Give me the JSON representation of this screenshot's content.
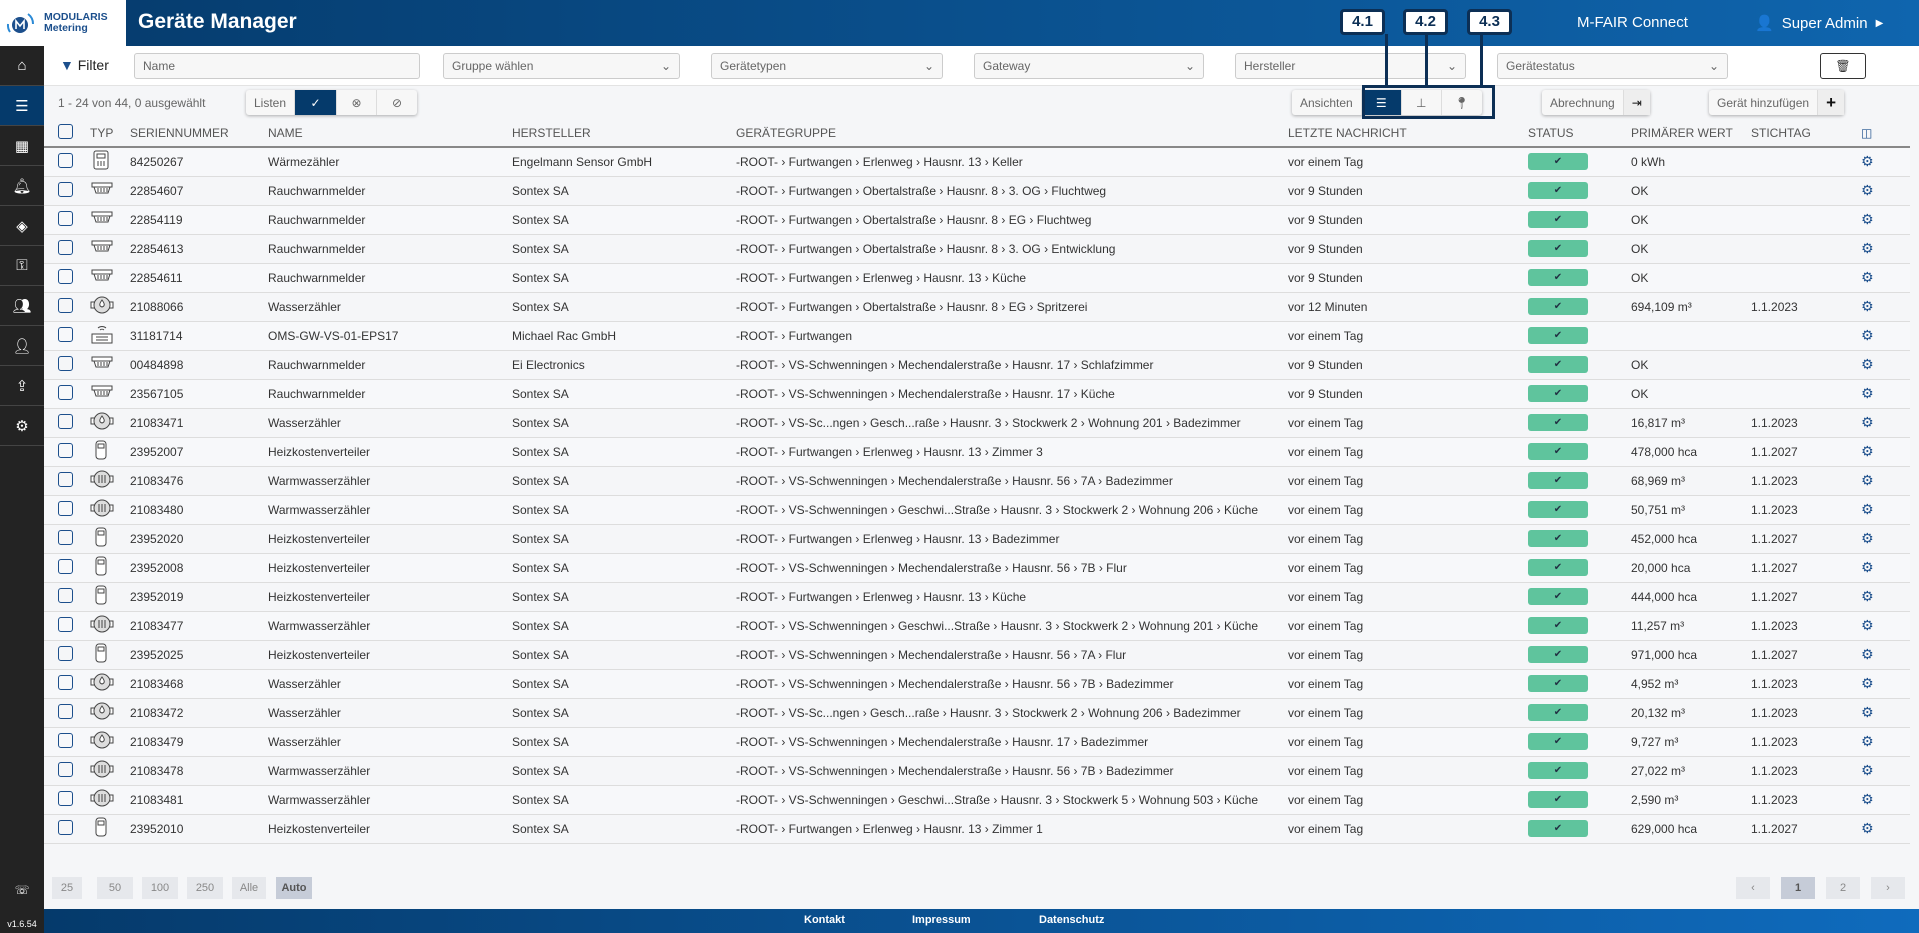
{
  "header": {
    "logo_line1": "MODULARIS",
    "logo_line2": "Metering",
    "title": "Geräte Manager",
    "app": "M-FAIR Connect",
    "user": "Super Admin"
  },
  "sidebar": {
    "items": [
      "home",
      "list",
      "buildings",
      "bell",
      "layers",
      "key",
      "users",
      "user-tag",
      "file-upload",
      "gear"
    ],
    "active": "list",
    "version": "v1.6.54"
  },
  "filter": {
    "label": "Filter",
    "name_placeholder": "Name",
    "group": "Gruppe wählen",
    "types": "Gerätetypen",
    "gateway": "Gateway",
    "manufacturer": "Hersteller",
    "status": "Gerätestatus"
  },
  "toolbar": {
    "count": "1 - 24 von 44, 0 ausgewählt",
    "lists": "Listen",
    "views": "Ansichten",
    "billing": "Abrechnung",
    "add_device": "Gerät hinzufügen",
    "annotations": [
      "4.1",
      "4.2",
      "4.3"
    ]
  },
  "columns": [
    "TYP",
    "SERIENNUMMER",
    "NAME",
    "HERSTELLER",
    "GERÄTEGRUPPE",
    "LETZTE NACHRICHT",
    "STATUS",
    "PRIMÄRER WERT",
    "STICHTAG"
  ],
  "rows": [
    {
      "type": "heat",
      "serial": "84250267",
      "name": "Wärmezähler",
      "mfr": "Engelmann Sensor GmbH",
      "group": "-ROOT- › Furtwangen › Erlenweg › Hausnr. 13 › Keller",
      "last": "vor einem Tag",
      "value": "0 kWh",
      "date": ""
    },
    {
      "type": "smoke",
      "serial": "22854607",
      "name": "Rauchwarnmelder",
      "mfr": "Sontex SA",
      "group": "-ROOT- › Furtwangen › Obertalstraße › Hausnr. 8 › 3. OG › Fluchtweg",
      "last": "vor 9 Stunden",
      "value": "OK",
      "date": ""
    },
    {
      "type": "smoke",
      "serial": "22854119",
      "name": "Rauchwarnmelder",
      "mfr": "Sontex SA",
      "group": "-ROOT- › Furtwangen › Obertalstraße › Hausnr. 8 › EG › Fluchtweg",
      "last": "vor 9 Stunden",
      "value": "OK",
      "date": ""
    },
    {
      "type": "smoke",
      "serial": "22854613",
      "name": "Rauchwarnmelder",
      "mfr": "Sontex SA",
      "group": "-ROOT- › Furtwangen › Obertalstraße › Hausnr. 8 › 3. OG › Entwicklung",
      "last": "vor 9 Stunden",
      "value": "OK",
      "date": ""
    },
    {
      "type": "smoke",
      "serial": "22854611",
      "name": "Rauchwarnmelder",
      "mfr": "Sontex SA",
      "group": "-ROOT- › Furtwangen › Erlenweg › Hausnr. 13 › Küche",
      "last": "vor 9 Stunden",
      "value": "OK",
      "date": ""
    },
    {
      "type": "water",
      "serial": "21088066",
      "name": "Wasserzähler",
      "mfr": "Sontex SA",
      "group": "-ROOT- › Furtwangen › Obertalstraße › Hausnr. 8 › EG › Spritzerei",
      "last": "vor 12 Minuten",
      "value": "694,109 m³",
      "date": "1.1.2023"
    },
    {
      "type": "gateway",
      "serial": "31181714",
      "name": "OMS-GW-VS-01-EPS17",
      "mfr": "Michael Rac GmbH",
      "group": "-ROOT- › Furtwangen",
      "last": "vor einem Tag",
      "value": "",
      "date": ""
    },
    {
      "type": "smoke",
      "serial": "00484898",
      "name": "Rauchwarnmelder",
      "mfr": "Ei Electronics",
      "group": "-ROOT- › VS-Schwenningen › Mechendalerstraße › Hausnr. 17 › Schlafzimmer",
      "last": "vor 9 Stunden",
      "value": "OK",
      "date": ""
    },
    {
      "type": "smoke",
      "serial": "23567105",
      "name": "Rauchwarnmelder",
      "mfr": "Sontex SA",
      "group": "-ROOT- › VS-Schwenningen › Mechendalerstraße › Hausnr. 17 › Küche",
      "last": "vor 9 Stunden",
      "value": "OK",
      "date": ""
    },
    {
      "type": "water",
      "serial": "21083471",
      "name": "Wasserzähler",
      "mfr": "Sontex SA",
      "group": "-ROOT- › VS-Sc...ngen › Gesch...raße › Hausnr. 3 › Stockwerk 2 › Wohnung 201 › Badezimmer",
      "last": "vor einem Tag",
      "value": "16,817 m³",
      "date": "1.1.2023"
    },
    {
      "type": "hca",
      "serial": "23952007",
      "name": "Heizkostenverteiler",
      "mfr": "Sontex SA",
      "group": "-ROOT- › Furtwangen › Erlenweg › Hausnr. 13 › Zimmer 3",
      "last": "vor einem Tag",
      "value": "478,000 hca",
      "date": "1.1.2027"
    },
    {
      "type": "warm",
      "serial": "21083476",
      "name": "Warmwasserzähler",
      "mfr": "Sontex SA",
      "group": "-ROOT- › VS-Schwenningen › Mechendalerstraße › Hausnr. 56 › 7A › Badezimmer",
      "last": "vor einem Tag",
      "value": "68,969 m³",
      "date": "1.1.2023"
    },
    {
      "type": "warm",
      "serial": "21083480",
      "name": "Warmwasserzähler",
      "mfr": "Sontex SA",
      "group": "-ROOT- › VS-Schwenningen › Geschwi...Straße › Hausnr. 3 › Stockwerk 2 › Wohnung 206 › Küche",
      "last": "vor einem Tag",
      "value": "50,751 m³",
      "date": "1.1.2023"
    },
    {
      "type": "hca",
      "serial": "23952020",
      "name": "Heizkostenverteiler",
      "mfr": "Sontex SA",
      "group": "-ROOT- › Furtwangen › Erlenweg › Hausnr. 13 › Badezimmer",
      "last": "vor einem Tag",
      "value": "452,000 hca",
      "date": "1.1.2027"
    },
    {
      "type": "hca",
      "serial": "23952008",
      "name": "Heizkostenverteiler",
      "mfr": "Sontex SA",
      "group": "-ROOT- › VS-Schwenningen › Mechendalerstraße › Hausnr. 56 › 7B › Flur",
      "last": "vor einem Tag",
      "value": "20,000 hca",
      "date": "1.1.2027"
    },
    {
      "type": "hca",
      "serial": "23952019",
      "name": "Heizkostenverteiler",
      "mfr": "Sontex SA",
      "group": "-ROOT- › Furtwangen › Erlenweg › Hausnr. 13 › Küche",
      "last": "vor einem Tag",
      "value": "444,000 hca",
      "date": "1.1.2027"
    },
    {
      "type": "warm",
      "serial": "21083477",
      "name": "Warmwasserzähler",
      "mfr": "Sontex SA",
      "group": "-ROOT- › VS-Schwenningen › Geschwi...Straße › Hausnr. 3 › Stockwerk 2 › Wohnung 201 › Küche",
      "last": "vor einem Tag",
      "value": "11,257 m³",
      "date": "1.1.2023"
    },
    {
      "type": "hca",
      "serial": "23952025",
      "name": "Heizkostenverteiler",
      "mfr": "Sontex SA",
      "group": "-ROOT- › VS-Schwenningen › Mechendalerstraße › Hausnr. 56 › 7A › Flur",
      "last": "vor einem Tag",
      "value": "971,000 hca",
      "date": "1.1.2027"
    },
    {
      "type": "water",
      "serial": "21083468",
      "name": "Wasserzähler",
      "mfr": "Sontex SA",
      "group": "-ROOT- › VS-Schwenningen › Mechendalerstraße › Hausnr. 56 › 7B › Badezimmer",
      "last": "vor einem Tag",
      "value": "4,952 m³",
      "date": "1.1.2023"
    },
    {
      "type": "water",
      "serial": "21083472",
      "name": "Wasserzähler",
      "mfr": "Sontex SA",
      "group": "-ROOT- › VS-Sc...ngen › Gesch...raße › Hausnr. 3 › Stockwerk 2 › Wohnung 206 › Badezimmer",
      "last": "vor einem Tag",
      "value": "20,132 m³",
      "date": "1.1.2023"
    },
    {
      "type": "water",
      "serial": "21083479",
      "name": "Wasserzähler",
      "mfr": "Sontex SA",
      "group": "-ROOT- › VS-Schwenningen › Mechendalerstraße › Hausnr. 17 › Badezimmer",
      "last": "vor einem Tag",
      "value": "9,727 m³",
      "date": "1.1.2023"
    },
    {
      "type": "warm",
      "serial": "21083478",
      "name": "Warmwasserzähler",
      "mfr": "Sontex SA",
      "group": "-ROOT- › VS-Schwenningen › Mechendalerstraße › Hausnr. 56 › 7B › Badezimmer",
      "last": "vor einem Tag",
      "value": "27,022 m³",
      "date": "1.1.2023"
    },
    {
      "type": "warm",
      "serial": "21083481",
      "name": "Warmwasserzähler",
      "mfr": "Sontex SA",
      "group": "-ROOT- › VS-Schwenningen › Geschwi...Straße › Hausnr. 3 › Stockwerk 5 › Wohnung 503 › Küche",
      "last": "vor einem Tag",
      "value": "2,590 m³",
      "date": "1.1.2023"
    },
    {
      "type": "hca",
      "serial": "23952010",
      "name": "Heizkostenverteiler",
      "mfr": "Sontex SA",
      "group": "-ROOT- › Furtwangen › Erlenweg › Hausnr. 13 › Zimmer 1",
      "last": "vor einem Tag",
      "value": "629,000 hca",
      "date": "1.1.2027"
    }
  ],
  "status_color": "#5fc49d",
  "pagination": {
    "sizes": [
      "25",
      "50",
      "100",
      "250",
      "Alle",
      "Auto"
    ],
    "active_size": "Auto",
    "pages": [
      "‹",
      "1",
      "2",
      "›"
    ],
    "active_page": "1"
  },
  "footer": {
    "links": [
      "Kontakt",
      "Impressum",
      "Datenschutz"
    ]
  }
}
